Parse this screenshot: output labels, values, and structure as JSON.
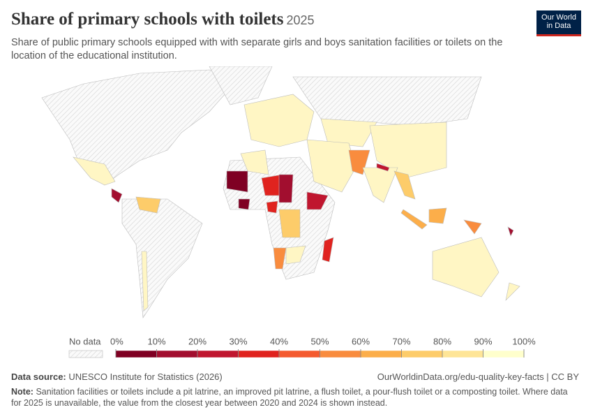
{
  "header": {
    "title": "Share of primary schools with toilets",
    "year": "2025",
    "subtitle": "Share of public primary schools equipped with with separate girls and boys sanitation facilities or toilets on the location of the educational institution.",
    "logo": [
      "Our World",
      "in Data"
    ]
  },
  "legend": {
    "no_data": "No data",
    "ticks": [
      {
        "value": 0,
        "label": "0%"
      },
      {
        "value": 10,
        "label": "10%"
      },
      {
        "value": 20,
        "label": "20%"
      },
      {
        "value": 30,
        "label": "30%"
      },
      {
        "value": 40,
        "label": "40%"
      },
      {
        "value": 50,
        "label": "50%"
      },
      {
        "value": 60,
        "label": "60%"
      },
      {
        "value": 70,
        "label": "70%"
      },
      {
        "value": 80,
        "label": "80%"
      },
      {
        "value": 90,
        "label": "90%"
      },
      {
        "value": 100,
        "label": "100%"
      }
    ],
    "colors": [
      "#7f0023",
      "#a20e2f",
      "#c0162f",
      "#e0231f",
      "#f45a2f",
      "#f98c3e",
      "#fcae4a",
      "#fdcc6a",
      "#fee597",
      "#ffffcc"
    ]
  },
  "footer": {
    "source_label": "Data source:",
    "source": "UNESCO Institute for Statistics (2026)",
    "url": "OurWorldinData.org/edu-quality-key-facts | CC BY",
    "note_label": "Note:",
    "note": "Sanitation facilities or toilets include a pit latrine, an improved pit latrine, a flush toilet, a pour-flush toilet or a composting toilet. Where data for 2025 is unavailable, the value from the closest year between 2020 and 2024 is shown instead."
  }
}
